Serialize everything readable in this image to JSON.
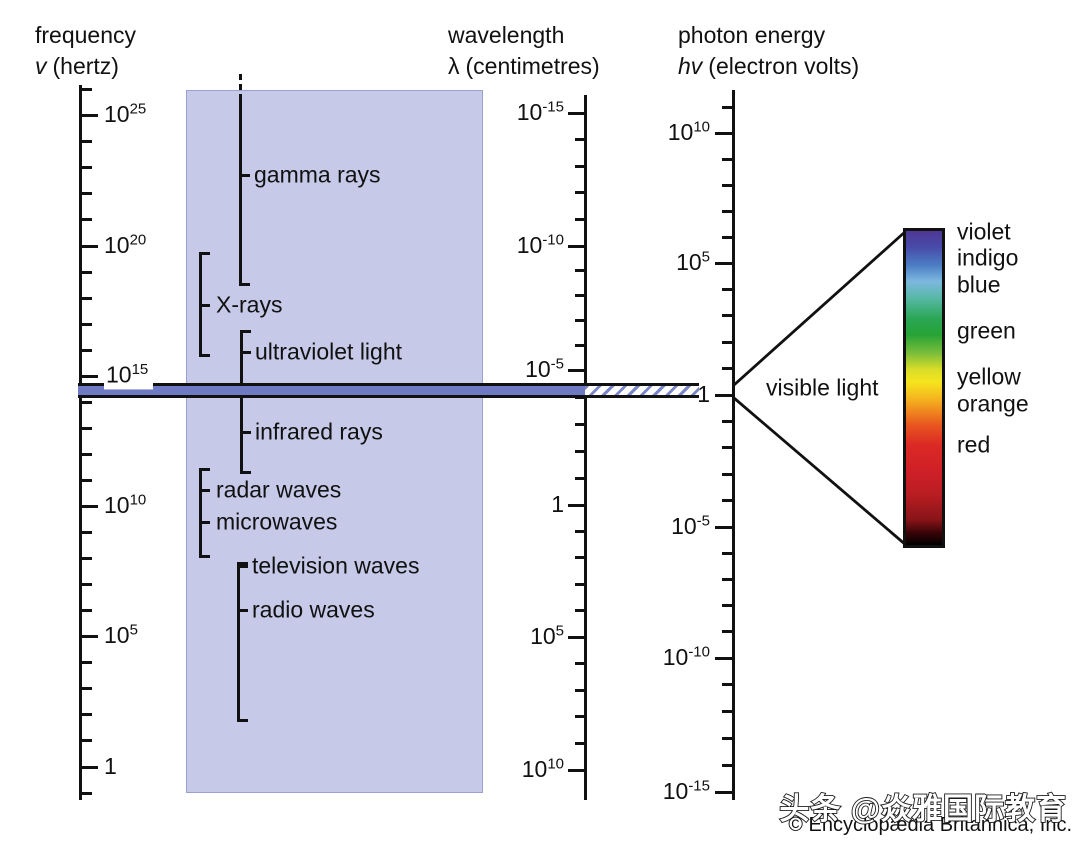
{
  "headers": {
    "frequency": {
      "line1": "frequency",
      "symbol": "v",
      "rest": "(hertz)"
    },
    "wavelength": {
      "line1": "wavelength",
      "symbol": "λ",
      "rest": "(centimetres)"
    },
    "photon_energy": {
      "line1": "photon energy",
      "symbol": "hv",
      "rest": "(electron volts)"
    }
  },
  "frequency_axis": {
    "tick_labels": [
      "10^25",
      "10^20",
      "10^15",
      "10^10",
      "10^5",
      "1"
    ]
  },
  "wavelength_axis": {
    "tick_labels": [
      "10^-15",
      "10^-10",
      "10^-5",
      "1",
      "10^5",
      "10^10"
    ]
  },
  "photon_axis": {
    "tick_labels": [
      "10^10",
      "10^5",
      "1",
      "10^-5",
      "10^-10",
      "10^-15"
    ]
  },
  "spectrum_bands": [
    {
      "label": "gamma rays"
    },
    {
      "label": "X-rays"
    },
    {
      "label": "ultraviolet light"
    },
    {
      "label": "infrared rays"
    },
    {
      "label": "radar waves"
    },
    {
      "label": "microwaves"
    },
    {
      "label": "television waves"
    },
    {
      "label": "radio waves"
    }
  ],
  "visible_light": {
    "label": "visible light",
    "colors": [
      {
        "name": "violet",
        "hex": "#503795"
      },
      {
        "name": "indigo",
        "hex": "#474aa8"
      },
      {
        "name": "blue",
        "hex": "#6ca8dc"
      },
      {
        "name": "green",
        "hex": "#27a337"
      },
      {
        "name": "yellow",
        "hex": "#f5e51e"
      },
      {
        "name": "orange",
        "hex": "#f08c1e"
      },
      {
        "name": "red",
        "hex": "#d02027"
      }
    ]
  },
  "footer": {
    "watermark": "头条 @焱雅国际教育",
    "copyright": "© Encyclopædia Britannica, Inc."
  },
  "palette": {
    "band_fill": "#c6c9e8",
    "visible_band_fill": "#6f7ac4",
    "hatch_stripe": "#7b85ca",
    "line_color": "#111111"
  }
}
